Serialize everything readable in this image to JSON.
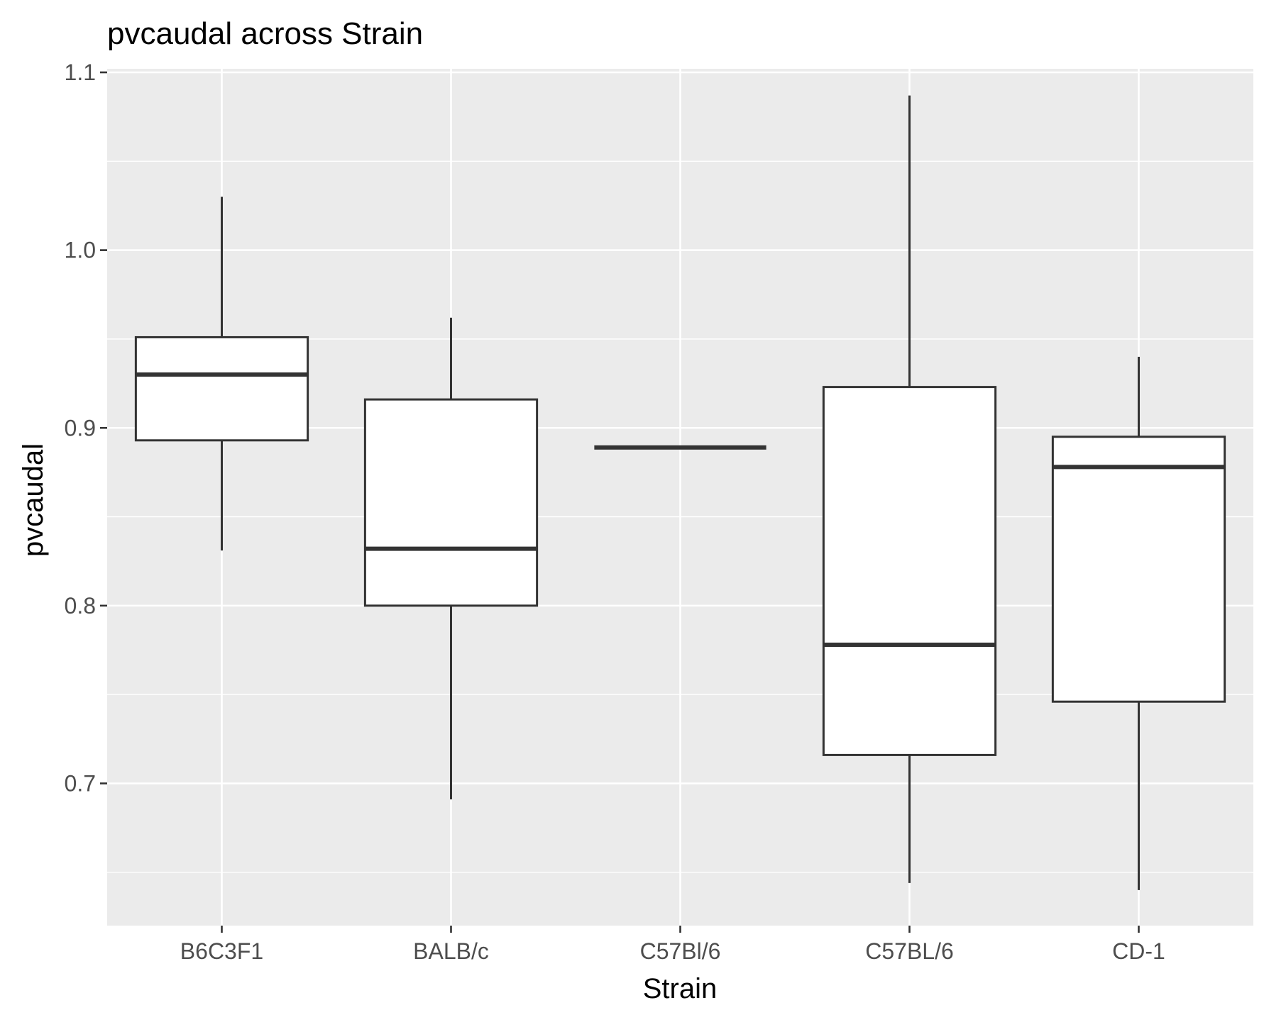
{
  "chart_data": {
    "type": "boxplot",
    "title": "pvcaudal across Strain",
    "xlabel": "Strain",
    "ylabel": "pvcaudal",
    "ylim": [
      0.62,
      1.102
    ],
    "y_ticks": [
      0.7,
      0.8,
      0.9,
      1.0,
      1.1
    ],
    "y_tick_labels": [
      "0.7",
      "0.8",
      "0.9",
      "1.0",
      "1.1"
    ],
    "y_minor_ticks": [
      0.65,
      0.75,
      0.85,
      0.95,
      1.05
    ],
    "grid": true,
    "categories": [
      "B6C3F1",
      "BALB/c",
      "C57Bl/6",
      "C57BL/6",
      "CD-1"
    ],
    "boxes": [
      {
        "category": "B6C3F1",
        "min": 0.831,
        "q1": 0.893,
        "median": 0.93,
        "q3": 0.951,
        "max": 1.03
      },
      {
        "category": "BALB/c",
        "min": 0.691,
        "q1": 0.8,
        "median": 0.832,
        "q3": 0.916,
        "max": 0.962
      },
      {
        "category": "C57Bl/6",
        "min": 0.889,
        "q1": 0.889,
        "median": 0.889,
        "q3": 0.889,
        "max": 0.889
      },
      {
        "category": "C57BL/6",
        "min": 0.644,
        "q1": 0.716,
        "median": 0.778,
        "q3": 0.923,
        "max": 1.087
      },
      {
        "category": "CD-1",
        "min": 0.64,
        "q1": 0.746,
        "median": 0.878,
        "q3": 0.895,
        "max": 0.94
      }
    ],
    "colors": {
      "panel": "#EBEBEB",
      "grid": "#FFFFFF",
      "box_fill": "#FFFFFF",
      "box_stroke": "#333333",
      "tick": "#333333",
      "tick_label": "#4D4D4D"
    }
  }
}
